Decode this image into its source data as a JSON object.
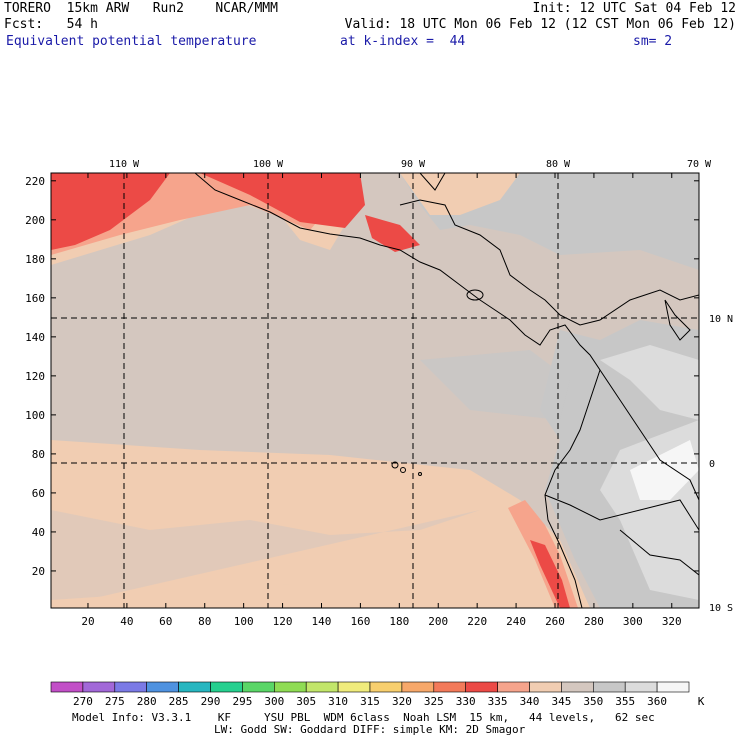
{
  "header": {
    "line1_left": "TORERO  15km ARW   Run2    NCAR/MMM",
    "line1_right": "Init: 12 UTC Sat 04 Feb 12",
    "line2_left": "Fcst:   54 h",
    "line2_right": "Valid: 18 UTC Mon 06 Feb 12 (12 CST Mon 06 Feb 12)",
    "line3_field": "Equivalent potential temperature",
    "line3_level": "at k-index =  44",
    "line3_smooth": "sm= 2"
  },
  "map": {
    "top_lon_labels": [
      "110 W",
      "100 W",
      "90 W",
      "80 W",
      "70 W"
    ],
    "right_lat_labels": [
      "10 N",
      "0",
      "10 S"
    ],
    "y_grid_labels": [
      "220",
      "200",
      "180",
      "160",
      "140",
      "120",
      "100",
      "80",
      "60",
      "40",
      "20"
    ],
    "x_grid_labels": [
      "20",
      "40",
      "60",
      "80",
      "100",
      "120",
      "140",
      "160",
      "180",
      "200",
      "220",
      "240",
      "260",
      "280",
      "300",
      "320"
    ],
    "x_range": [
      1,
      334
    ],
    "y_range": [
      1,
      224
    ]
  },
  "colorbar": {
    "unit": "K",
    "levels": [
      "270",
      "275",
      "280",
      "285",
      "290",
      "295",
      "300",
      "305",
      "310",
      "315",
      "320",
      "325",
      "330",
      "335",
      "340",
      "345",
      "350",
      "355",
      "360"
    ],
    "colors": [
      "#c24fc7",
      "#a268d8",
      "#7b7ae6",
      "#4f92e0",
      "#27b6c0",
      "#26d08f",
      "#5ad667",
      "#8fdc54",
      "#c2e66a",
      "#f0ec7c",
      "#f8cf6e",
      "#f7a86a",
      "#f37a5a",
      "#ec4a46",
      "#f6a48c",
      "#f1cdb2",
      "#d4c7bf",
      "#c7c7c7",
      "#dcdcdc",
      "#f6f6f6"
    ]
  },
  "footer": {
    "line1": "Model Info: V3.3.1    KF     YSU PBL  WDM 6class  Noah LSM  15 km,   44 levels,   62 sec",
    "line2": "LW: Godd SW: Goddard DIFF: simple KM: 2D Smagor"
  }
}
